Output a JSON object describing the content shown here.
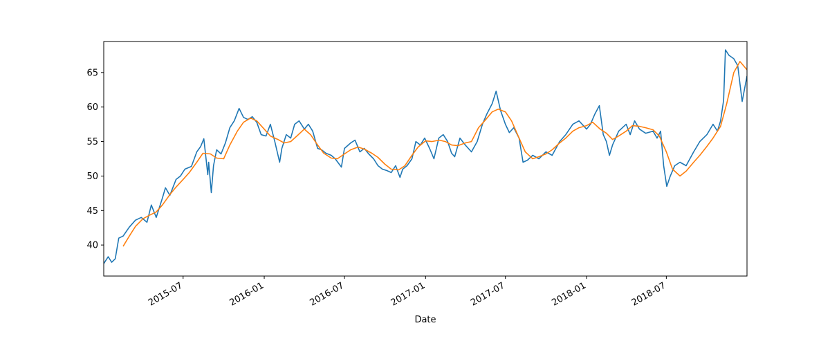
{
  "chart_data": {
    "type": "line",
    "title": "",
    "xlabel": "Date",
    "ylabel": "",
    "x_range": [
      "2015-01-02",
      "2018-12-31"
    ],
    "ylim": [
      35.5,
      69.5
    ],
    "yticks": [
      40,
      45,
      50,
      55,
      60,
      65
    ],
    "xticks": [
      {
        "date": "2015-07-01",
        "label": "2015-07"
      },
      {
        "date": "2016-01-01",
        "label": "2016-01"
      },
      {
        "date": "2016-07-01",
        "label": "2016-07"
      },
      {
        "date": "2017-01-01",
        "label": "2017-01"
      },
      {
        "date": "2017-07-01",
        "label": "2017-07"
      },
      {
        "date": "2018-01-01",
        "label": "2018-01"
      },
      {
        "date": "2018-07-01",
        "label": "2018-07"
      }
    ],
    "grid": false,
    "legend": "none",
    "series": [
      {
        "color": "#1f77b4",
        "points": [
          [
            "2015-01-02",
            37.3
          ],
          [
            "2015-01-12",
            38.3
          ],
          [
            "2015-01-20",
            37.5
          ],
          [
            "2015-01-28",
            38.0
          ],
          [
            "2015-02-05",
            41.0
          ],
          [
            "2015-02-15",
            41.3
          ],
          [
            "2015-03-01",
            42.6
          ],
          [
            "2015-03-15",
            43.6
          ],
          [
            "2015-03-28",
            44.0
          ],
          [
            "2015-04-10",
            43.3
          ],
          [
            "2015-04-20",
            45.8
          ],
          [
            "2015-05-01",
            44.0
          ],
          [
            "2015-05-15",
            46.8
          ],
          [
            "2015-05-22",
            48.3
          ],
          [
            "2015-06-01",
            47.2
          ],
          [
            "2015-06-15",
            49.5
          ],
          [
            "2015-06-25",
            50.0
          ],
          [
            "2015-07-05",
            51.0
          ],
          [
            "2015-07-20",
            51.4
          ],
          [
            "2015-08-01",
            53.5
          ],
          [
            "2015-08-10",
            54.3
          ],
          [
            "2015-08-17",
            55.4
          ],
          [
            "2015-08-22",
            52.5
          ],
          [
            "2015-08-26",
            50.2
          ],
          [
            "2015-08-28",
            52.0
          ],
          [
            "2015-09-03",
            47.6
          ],
          [
            "2015-09-08",
            51.5
          ],
          [
            "2015-09-15",
            53.8
          ],
          [
            "2015-09-25",
            53.2
          ],
          [
            "2015-10-05",
            54.8
          ],
          [
            "2015-10-15",
            57.0
          ],
          [
            "2015-10-25",
            58.0
          ],
          [
            "2015-11-05",
            59.8
          ],
          [
            "2015-11-15",
            58.5
          ],
          [
            "2015-11-25",
            58.2
          ],
          [
            "2015-12-05",
            58.6
          ],
          [
            "2015-12-15",
            57.8
          ],
          [
            "2015-12-25",
            56.0
          ],
          [
            "2016-01-05",
            55.8
          ],
          [
            "2016-01-15",
            57.5
          ],
          [
            "2016-01-25",
            55.0
          ],
          [
            "2016-02-05",
            52.0
          ],
          [
            "2016-02-10",
            54.0
          ],
          [
            "2016-02-20",
            56.0
          ],
          [
            "2016-03-01",
            55.5
          ],
          [
            "2016-03-10",
            57.5
          ],
          [
            "2016-03-20",
            58.0
          ],
          [
            "2016-04-01",
            56.8
          ],
          [
            "2016-04-10",
            57.5
          ],
          [
            "2016-04-20",
            56.5
          ],
          [
            "2016-05-01",
            54.0
          ],
          [
            "2016-05-10",
            53.8
          ],
          [
            "2016-05-20",
            53.3
          ],
          [
            "2016-06-01",
            53.0
          ],
          [
            "2016-06-10",
            52.5
          ],
          [
            "2016-06-24",
            51.3
          ],
          [
            "2016-07-01",
            54.0
          ],
          [
            "2016-07-15",
            54.8
          ],
          [
            "2016-07-25",
            55.2
          ],
          [
            "2016-08-05",
            53.5
          ],
          [
            "2016-08-15",
            54.0
          ],
          [
            "2016-08-25",
            53.2
          ],
          [
            "2016-09-05",
            52.5
          ],
          [
            "2016-09-15",
            51.5
          ],
          [
            "2016-09-25",
            51.0
          ],
          [
            "2016-10-05",
            50.8
          ],
          [
            "2016-10-15",
            50.5
          ],
          [
            "2016-10-25",
            51.5
          ],
          [
            "2016-11-04",
            49.8
          ],
          [
            "2016-11-10",
            51.0
          ],
          [
            "2016-11-20",
            51.5
          ],
          [
            "2016-12-01",
            52.5
          ],
          [
            "2016-12-10",
            55.0
          ],
          [
            "2016-12-20",
            54.5
          ],
          [
            "2016-12-30",
            55.5
          ],
          [
            "2017-01-10",
            54.0
          ],
          [
            "2017-01-20",
            52.5
          ],
          [
            "2017-01-31",
            55.5
          ],
          [
            "2017-02-10",
            56.0
          ],
          [
            "2017-02-20",
            55.0
          ],
          [
            "2017-03-01",
            53.3
          ],
          [
            "2017-03-08",
            52.8
          ],
          [
            "2017-03-20",
            55.5
          ],
          [
            "2017-04-01",
            54.5
          ],
          [
            "2017-04-15",
            53.5
          ],
          [
            "2017-04-28",
            55.0
          ],
          [
            "2017-05-10",
            57.5
          ],
          [
            "2017-05-20",
            59.0
          ],
          [
            "2017-06-01",
            60.5
          ],
          [
            "2017-06-10",
            62.3
          ],
          [
            "2017-06-20",
            59.5
          ],
          [
            "2017-07-01",
            57.5
          ],
          [
            "2017-07-10",
            56.3
          ],
          [
            "2017-07-20",
            57.0
          ],
          [
            "2017-08-01",
            55.5
          ],
          [
            "2017-08-10",
            52.0
          ],
          [
            "2017-08-20",
            52.3
          ],
          [
            "2017-09-01",
            53.0
          ],
          [
            "2017-09-15",
            52.5
          ],
          [
            "2017-10-01",
            53.5
          ],
          [
            "2017-10-15",
            53.0
          ],
          [
            "2017-11-01",
            55.0
          ],
          [
            "2017-11-15",
            56.0
          ],
          [
            "2017-12-01",
            57.5
          ],
          [
            "2017-12-15",
            58.0
          ],
          [
            "2018-01-01",
            56.8
          ],
          [
            "2018-01-10",
            57.5
          ],
          [
            "2018-01-20",
            59.0
          ],
          [
            "2018-01-30",
            60.2
          ],
          [
            "2018-02-08",
            56.0
          ],
          [
            "2018-02-15",
            55.0
          ],
          [
            "2018-02-22",
            53.0
          ],
          [
            "2018-03-01",
            54.5
          ],
          [
            "2018-03-15",
            56.5
          ],
          [
            "2018-04-01",
            57.5
          ],
          [
            "2018-04-10",
            56.0
          ],
          [
            "2018-04-20",
            58.0
          ],
          [
            "2018-05-01",
            56.8
          ],
          [
            "2018-05-15",
            56.2
          ],
          [
            "2018-06-01",
            56.5
          ],
          [
            "2018-06-10",
            55.5
          ],
          [
            "2018-06-18",
            56.5
          ],
          [
            "2018-06-25",
            51.5
          ],
          [
            "2018-07-02",
            48.5
          ],
          [
            "2018-07-10",
            50.0
          ],
          [
            "2018-07-20",
            51.5
          ],
          [
            "2018-08-01",
            52.0
          ],
          [
            "2018-08-15",
            51.5
          ],
          [
            "2018-09-01",
            53.5
          ],
          [
            "2018-09-15",
            55.0
          ],
          [
            "2018-10-01",
            56.0
          ],
          [
            "2018-10-15",
            57.5
          ],
          [
            "2018-10-25",
            56.5
          ],
          [
            "2018-11-01",
            58.0
          ],
          [
            "2018-11-08",
            61.0
          ],
          [
            "2018-11-12",
            68.3
          ],
          [
            "2018-11-20",
            67.5
          ],
          [
            "2018-12-01",
            67.0
          ],
          [
            "2018-12-10",
            66.0
          ],
          [
            "2018-12-20",
            60.8
          ],
          [
            "2018-12-31",
            64.5
          ]
        ]
      },
      {
        "color": "#ff7f0e",
        "points": [
          [
            "2015-02-15",
            39.8
          ],
          [
            "2015-03-01",
            41.3
          ],
          [
            "2015-03-15",
            42.7
          ],
          [
            "2015-04-01",
            43.8
          ],
          [
            "2015-04-15",
            44.3
          ],
          [
            "2015-05-01",
            44.8
          ],
          [
            "2015-05-15",
            45.8
          ],
          [
            "2015-06-01",
            47.3
          ],
          [
            "2015-06-15",
            48.4
          ],
          [
            "2015-07-01",
            49.5
          ],
          [
            "2015-07-15",
            50.5
          ],
          [
            "2015-08-01",
            52.0
          ],
          [
            "2015-08-15",
            53.3
          ],
          [
            "2015-09-01",
            53.2
          ],
          [
            "2015-09-15",
            52.6
          ],
          [
            "2015-10-01",
            52.5
          ],
          [
            "2015-10-15",
            54.5
          ],
          [
            "2015-11-01",
            56.5
          ],
          [
            "2015-11-15",
            57.8
          ],
          [
            "2015-12-01",
            58.4
          ],
          [
            "2015-12-15",
            58.0
          ],
          [
            "2016-01-01",
            56.8
          ],
          [
            "2016-01-15",
            55.8
          ],
          [
            "2016-02-01",
            55.3
          ],
          [
            "2016-02-15",
            54.8
          ],
          [
            "2016-03-01",
            55.0
          ],
          [
            "2016-03-15",
            55.8
          ],
          [
            "2016-04-01",
            56.8
          ],
          [
            "2016-04-15",
            56.0
          ],
          [
            "2016-05-01",
            54.5
          ],
          [
            "2016-05-15",
            53.3
          ],
          [
            "2016-06-01",
            52.6
          ],
          [
            "2016-06-15",
            52.5
          ],
          [
            "2016-07-01",
            53.2
          ],
          [
            "2016-07-15",
            53.8
          ],
          [
            "2016-08-01",
            54.2
          ],
          [
            "2016-08-15",
            53.9
          ],
          [
            "2016-09-01",
            53.3
          ],
          [
            "2016-09-15",
            52.7
          ],
          [
            "2016-10-01",
            51.7
          ],
          [
            "2016-10-15",
            51.0
          ],
          [
            "2016-11-01",
            50.9
          ],
          [
            "2016-11-15",
            51.5
          ],
          [
            "2016-12-01",
            53.0
          ],
          [
            "2016-12-15",
            54.2
          ],
          [
            "2017-01-01",
            55.1
          ],
          [
            "2017-01-15",
            55.0
          ],
          [
            "2017-02-01",
            55.2
          ],
          [
            "2017-02-15",
            55.0
          ],
          [
            "2017-03-01",
            54.5
          ],
          [
            "2017-03-15",
            54.4
          ],
          [
            "2017-04-01",
            54.8
          ],
          [
            "2017-04-15",
            55.0
          ],
          [
            "2017-05-01",
            57.0
          ],
          [
            "2017-05-15",
            58.0
          ],
          [
            "2017-06-01",
            59.3
          ],
          [
            "2017-06-15",
            59.7
          ],
          [
            "2017-07-01",
            59.3
          ],
          [
            "2017-07-15",
            58.0
          ],
          [
            "2017-08-01",
            55.5
          ],
          [
            "2017-08-15",
            53.5
          ],
          [
            "2017-09-01",
            52.5
          ],
          [
            "2017-09-15",
            52.8
          ],
          [
            "2017-10-01",
            53.2
          ],
          [
            "2017-10-15",
            53.8
          ],
          [
            "2017-11-01",
            54.8
          ],
          [
            "2017-11-15",
            55.5
          ],
          [
            "2017-12-01",
            56.5
          ],
          [
            "2017-12-15",
            57.0
          ],
          [
            "2018-01-01",
            57.3
          ],
          [
            "2018-01-15",
            57.8
          ],
          [
            "2018-02-01",
            56.8
          ],
          [
            "2018-02-15",
            56.2
          ],
          [
            "2018-03-01",
            55.3
          ],
          [
            "2018-03-15",
            55.8
          ],
          [
            "2018-04-01",
            56.5
          ],
          [
            "2018-04-15",
            57.3
          ],
          [
            "2018-05-01",
            57.2
          ],
          [
            "2018-05-15",
            57.0
          ],
          [
            "2018-06-01",
            56.7
          ],
          [
            "2018-06-15",
            55.8
          ],
          [
            "2018-07-01",
            53.5
          ],
          [
            "2018-07-15",
            51.0
          ],
          [
            "2018-08-01",
            50.0
          ],
          [
            "2018-08-15",
            50.7
          ],
          [
            "2018-09-01",
            52.0
          ],
          [
            "2018-09-15",
            53.0
          ],
          [
            "2018-10-01",
            54.3
          ],
          [
            "2018-10-15",
            55.5
          ],
          [
            "2018-11-01",
            57.2
          ],
          [
            "2018-11-15",
            60.5
          ],
          [
            "2018-12-01",
            65.0
          ],
          [
            "2018-12-15",
            66.6
          ],
          [
            "2018-12-31",
            65.4
          ]
        ]
      }
    ]
  }
}
